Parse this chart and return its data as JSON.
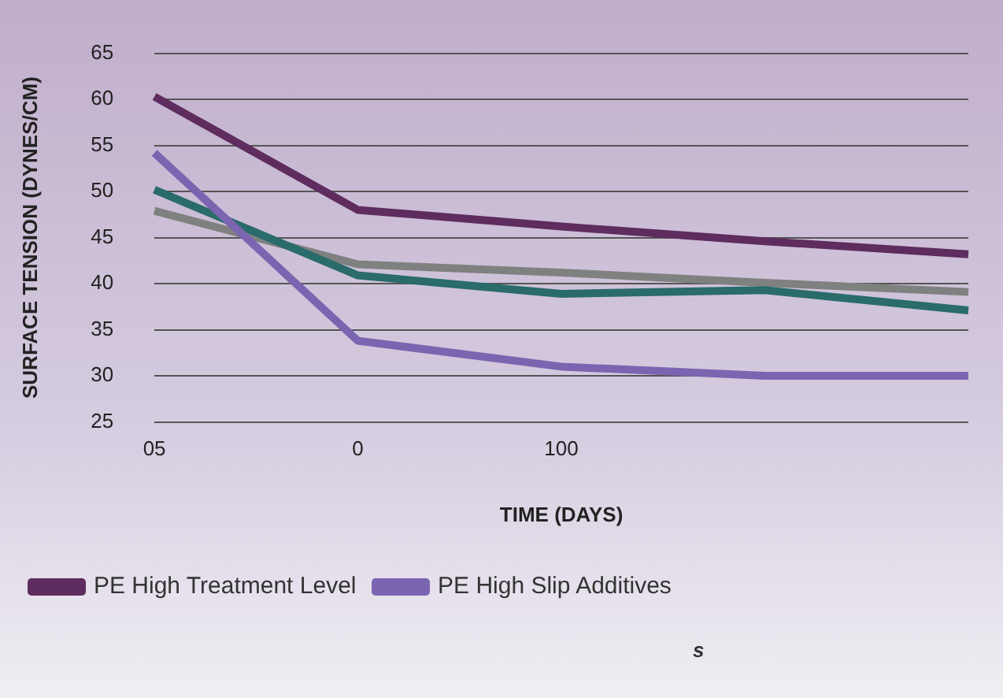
{
  "chart_data": {
    "type": "line",
    "xlabel": "TIME (DAYS)",
    "ylabel": "SURFACE TENSION (DYNES/CM)",
    "categories": [
      "05",
      "0",
      "100",
      null,
      null
    ],
    "series": [
      {
        "name": "PE High Treatment Level",
        "color": "#5e2c5e",
        "values": [
          60.3,
          48,
          46.2,
          44.6,
          43.2
        ]
      },
      {
        "name": "PE High Slip Additives",
        "color": "#7b65b0",
        "values": [
          54.2,
          33.8,
          31,
          30,
          30
        ]
      },
      {
        "color": "#2a6b6b",
        "values": [
          50.2,
          40.9,
          38.9,
          39.3,
          37.1
        ]
      },
      {
        "color": "#7f8080",
        "values": [
          47.9,
          42.1,
          41.2,
          40.1,
          39.1
        ]
      }
    ],
    "ylim": [
      25,
      65
    ],
    "yticks": [
      25,
      30,
      35,
      40,
      45,
      50,
      55,
      60,
      65
    ],
    "grid": "y",
    "legend": "bottom",
    "marker": "none",
    "line_style": "solid",
    "annotations": [
      "s"
    ]
  }
}
